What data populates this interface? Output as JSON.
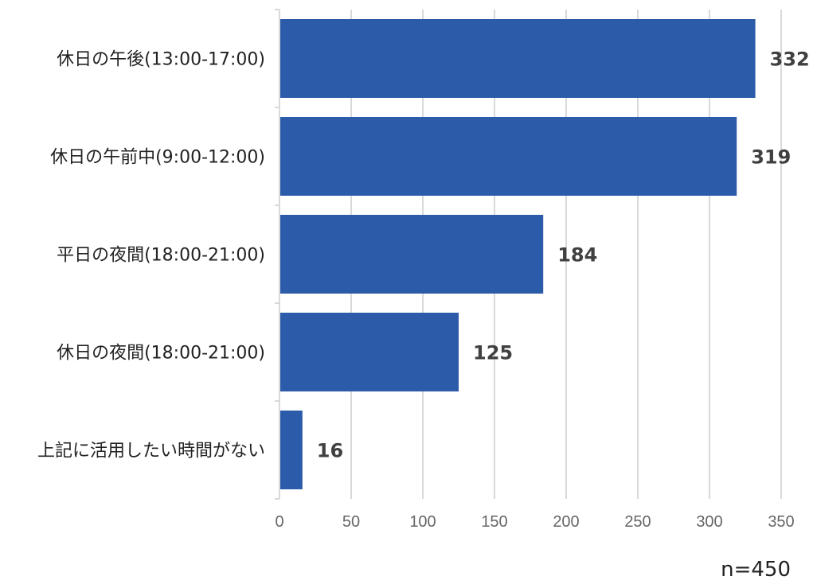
{
  "chart_data": {
    "type": "bar",
    "orientation": "horizontal",
    "categories": [
      "休日の午後(13:00-17:00)",
      "休日の午前中(9:00-12:00)",
      "平日の夜間(18:00-21:00)",
      "休日の夜間(18:00-21:00)",
      "上記に活用したい時間がない"
    ],
    "values": [
      332,
      319,
      184,
      125,
      16
    ],
    "data_labels": [
      "332",
      "319",
      "184",
      "125",
      "16"
    ],
    "xlim": [
      0,
      350
    ],
    "xticks": [
      0,
      50,
      100,
      150,
      200,
      250,
      300,
      350
    ],
    "xtick_labels": [
      "0",
      "50",
      "100",
      "150",
      "200",
      "250",
      "300",
      "350"
    ],
    "title": "",
    "xlabel": "",
    "ylabel": "",
    "grid": "vertical",
    "legend": "none",
    "bar_color": "#2B5BA9",
    "grid_color": "#D9D9D9",
    "annotation": "n=450"
  }
}
